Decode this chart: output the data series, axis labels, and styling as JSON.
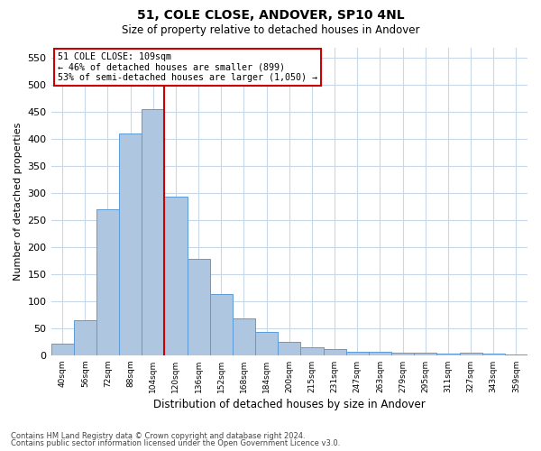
{
  "title1": "51, COLE CLOSE, ANDOVER, SP10 4NL",
  "title2": "Size of property relative to detached houses in Andover",
  "xlabel": "Distribution of detached houses by size in Andover",
  "ylabel": "Number of detached properties",
  "bin_labels": [
    "40sqm",
    "56sqm",
    "72sqm",
    "88sqm",
    "104sqm",
    "120sqm",
    "136sqm",
    "152sqm",
    "168sqm",
    "184sqm",
    "200sqm",
    "215sqm",
    "231sqm",
    "247sqm",
    "263sqm",
    "279sqm",
    "295sqm",
    "311sqm",
    "327sqm",
    "343sqm",
    "359sqm"
  ],
  "bar_heights": [
    22,
    65,
    270,
    410,
    455,
    293,
    178,
    113,
    68,
    43,
    25,
    15,
    12,
    7,
    7,
    5,
    4,
    3,
    5,
    3,
    2
  ],
  "bar_color": "#aec6df",
  "bar_edge_color": "#5b9bd5",
  "bar_width": 1.0,
  "red_line_x": 4.5,
  "annotation_text": "51 COLE CLOSE: 109sqm\n← 46% of detached houses are smaller (899)\n53% of semi-detached houses are larger (1,050) →",
  "annotation_box_color": "#ffffff",
  "annotation_box_edge": "#cc0000",
  "ylim": [
    0,
    570
  ],
  "yticks": [
    0,
    50,
    100,
    150,
    200,
    250,
    300,
    350,
    400,
    450,
    500,
    550
  ],
  "footer1": "Contains HM Land Registry data © Crown copyright and database right 2024.",
  "footer2": "Contains public sector information licensed under the Open Government Licence v3.0.",
  "background_color": "#ffffff",
  "grid_color": "#c8d8e8"
}
